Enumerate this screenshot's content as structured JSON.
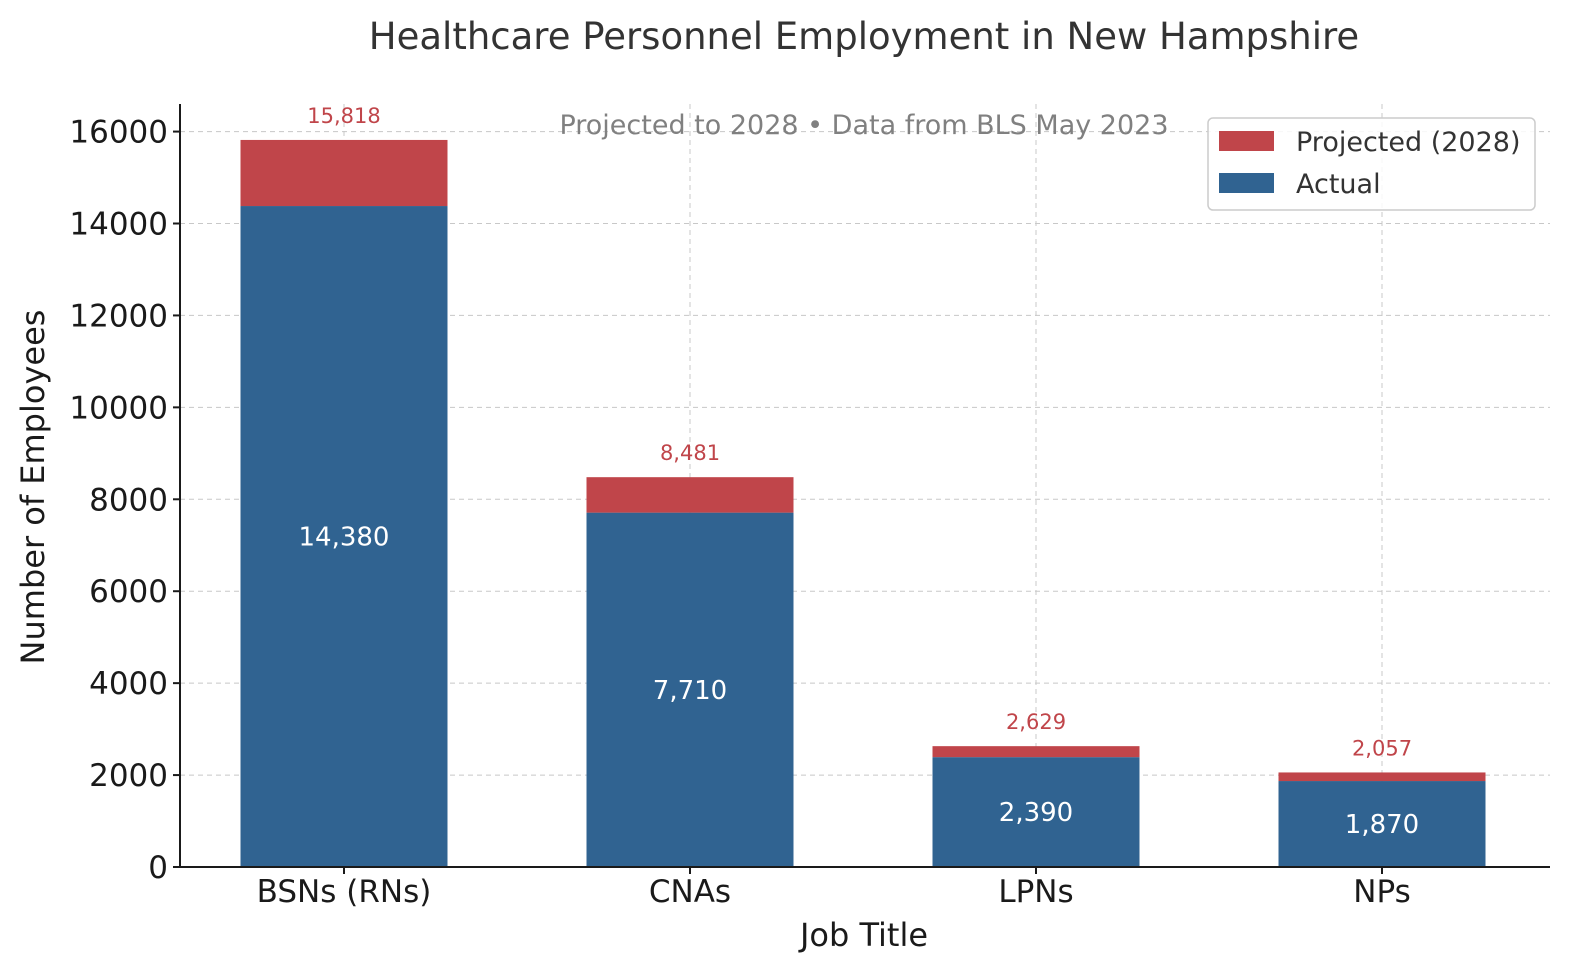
{
  "chart_data": {
    "type": "bar",
    "stacked": true,
    "title": "Healthcare Personnel Employment in New Hampshire",
    "subtitle": "Projected to 2028 • Data from BLS May 2023",
    "xlabel": "Job Title",
    "ylabel": "Number of Employees",
    "categories": [
      "BSNs (RNs)",
      "CNAs",
      "LPNs",
      "NPs"
    ],
    "series": [
      {
        "name": "Actual",
        "values": [
          14380,
          7710,
          2390,
          1870
        ],
        "color": "#306391"
      },
      {
        "name": "Projected (2028)",
        "values": [
          1438,
          771,
          239,
          187
        ],
        "color": "#c0454a"
      }
    ],
    "inner_labels": [
      "14,380",
      "7,710",
      "2,390",
      "1,870"
    ],
    "total_labels": [
      "15,818",
      "8,481",
      "2,629",
      "2,057"
    ],
    "totals": [
      15818,
      8481,
      2629,
      2057
    ],
    "ylim": [
      0,
      16600
    ],
    "yticks": [
      0,
      2000,
      4000,
      6000,
      8000,
      10000,
      12000,
      14000,
      16000
    ],
    "ytick_labels": [
      "0",
      "2000",
      "4000",
      "6000",
      "8000",
      "10000",
      "12000",
      "14000",
      "16000"
    ],
    "grid": true,
    "legend": {
      "position": "top-right",
      "entries": [
        "Projected (2028)",
        "Actual"
      ]
    }
  }
}
